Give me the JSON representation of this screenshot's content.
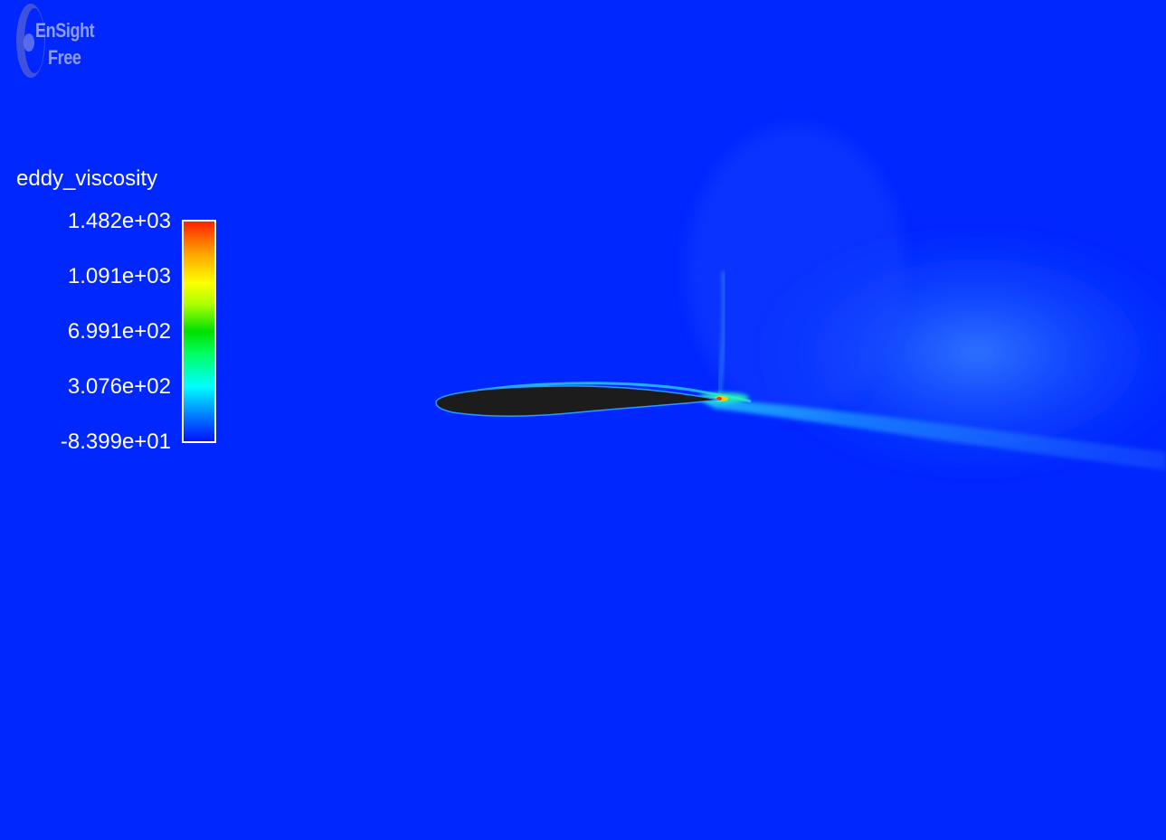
{
  "app": {
    "logo_line1": "EnSight",
    "logo_line2": "Free"
  },
  "legend": {
    "title": "eddy_viscosity",
    "labels": [
      "1.482e+03",
      "1.091e+03",
      "6.991e+02",
      "3.076e+02",
      "-8.399e+01"
    ],
    "colormap": [
      "#ff2000",
      "#ffa000",
      "#ffff00",
      "#00e000",
      "#00ffff",
      "#0080ff",
      "#0012ff"
    ]
  },
  "colors": {
    "background": "#0127ff",
    "airfoil": "#1c1c1c",
    "text": "#ffffff"
  }
}
